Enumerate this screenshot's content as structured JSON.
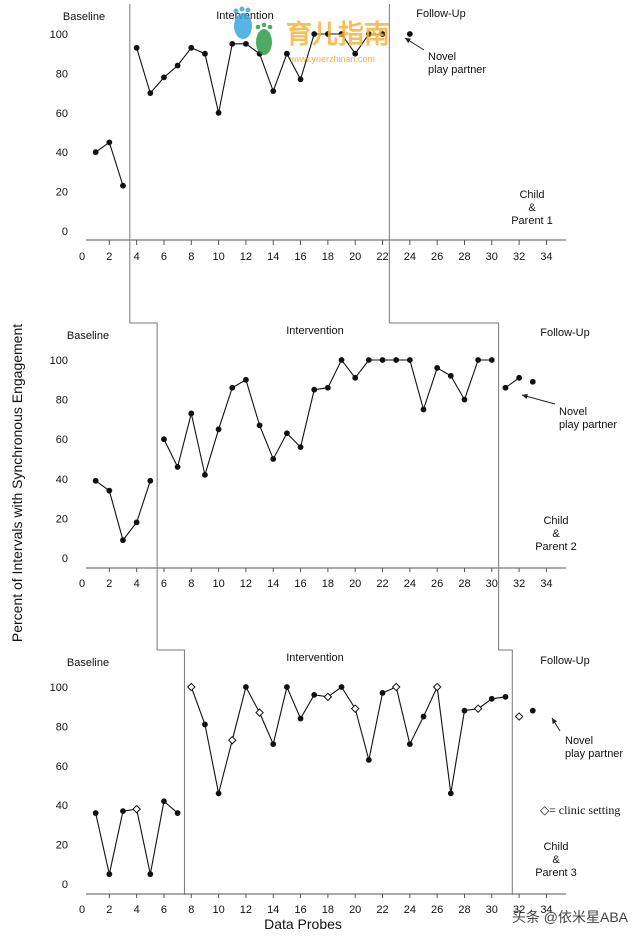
{
  "chart_data": [
    {
      "type": "line",
      "title": "Child & Parent 1",
      "participant": [
        "Child",
        "&",
        "Parent 1"
      ],
      "phases": [
        "Baseline",
        "Intervention",
        "Follow-Up"
      ],
      "xlim": [
        0,
        35
      ],
      "ylim": [
        0,
        100
      ],
      "xticks": [
        0,
        2,
        4,
        6,
        8,
        10,
        12,
        14,
        16,
        18,
        20,
        22,
        24,
        26,
        28,
        30,
        32,
        34
      ],
      "yticks": [
        0,
        20,
        40,
        60,
        80,
        100
      ],
      "phase_changes": [
        3.5,
        22.5
      ],
      "series": [
        {
          "name": "Baseline",
          "x": [
            1,
            2,
            3
          ],
          "y": [
            40,
            45,
            23
          ]
        },
        {
          "name": "Intervention",
          "x": [
            4,
            5,
            6,
            7,
            8,
            9,
            10,
            11,
            12,
            13,
            14,
            15,
            16,
            17,
            18,
            19,
            20,
            21,
            22
          ],
          "y": [
            93,
            70,
            78,
            84,
            93,
            90,
            60,
            95,
            95,
            90,
            71,
            90,
            77,
            100,
            100,
            100,
            90,
            100,
            100
          ]
        },
        {
          "name": "Follow-Up",
          "x": [
            24
          ],
          "y": [
            100
          ]
        }
      ],
      "annotation": {
        "text": [
          "Novel",
          "play partner"
        ],
        "points_to": {
          "x": 24,
          "y": 100
        }
      }
    },
    {
      "type": "line",
      "title": "Child & Parent 2",
      "participant": [
        "Child",
        "&",
        "Parent 2"
      ],
      "phases": [
        "Baseline",
        "Intervention",
        "Follow-Up"
      ],
      "xlim": [
        0,
        35
      ],
      "ylim": [
        0,
        100
      ],
      "xticks": [
        0,
        2,
        4,
        6,
        8,
        10,
        12,
        14,
        16,
        18,
        20,
        22,
        24,
        26,
        28,
        30,
        32,
        34
      ],
      "yticks": [
        0,
        20,
        40,
        60,
        80,
        100
      ],
      "phase_changes": [
        5.5,
        30.5
      ],
      "series": [
        {
          "name": "Baseline",
          "x": [
            1,
            2,
            3,
            4,
            5
          ],
          "y": [
            39,
            34,
            9,
            18,
            39
          ]
        },
        {
          "name": "Intervention",
          "x": [
            6,
            7,
            8,
            9,
            10,
            11,
            12,
            13,
            14,
            15,
            16,
            17,
            18,
            19,
            20,
            21,
            22,
            23,
            24,
            25,
            26,
            27,
            28,
            29,
            30
          ],
          "y": [
            60,
            46,
            73,
            42,
            65,
            86,
            90,
            67,
            50,
            63,
            56,
            85,
            86,
            100,
            91,
            100,
            100,
            100,
            100,
            75,
            96,
            92,
            80,
            100,
            100
          ]
        },
        {
          "name": "Follow-Up",
          "x": [
            31,
            32
          ],
          "y": [
            86,
            91
          ]
        },
        {
          "name": "Follow-Up (novel partner)",
          "x": [
            33
          ],
          "y": [
            89
          ]
        }
      ],
      "annotation": {
        "text": [
          "Novel",
          "play partner"
        ],
        "points_to": {
          "x": 32,
          "y": 83
        }
      }
    },
    {
      "type": "line",
      "title": "Child & Parent 3",
      "participant": [
        "Child",
        "&",
        "Parent 3"
      ],
      "phases": [
        "Baseline",
        "Intervention",
        "Follow-Up"
      ],
      "xlim": [
        0,
        35
      ],
      "ylim": [
        0,
        100
      ],
      "xticks": [
        0,
        2,
        4,
        6,
        8,
        10,
        12,
        14,
        16,
        18,
        20,
        22,
        24,
        26,
        28,
        30,
        32,
        34
      ],
      "yticks": [
        0,
        20,
        40,
        60,
        80,
        100
      ],
      "phase_changes": [
        7.5,
        31.5
      ],
      "series": [
        {
          "name": "Baseline",
          "x": [
            1,
            2,
            3,
            4,
            5,
            6,
            7
          ],
          "y": [
            36,
            5,
            37,
            38,
            5,
            42,
            36
          ],
          "clinic": [
            false,
            false,
            false,
            true,
            false,
            false,
            false
          ]
        },
        {
          "name": "Intervention",
          "x": [
            8,
            9,
            10,
            11,
            12,
            13,
            14,
            15,
            16,
            17,
            18,
            19,
            20,
            21,
            22,
            23,
            24,
            25,
            26,
            27,
            28,
            29,
            30,
            31
          ],
          "y": [
            100,
            81,
            46,
            73,
            100,
            87,
            71,
            100,
            84,
            96,
            95,
            100,
            89,
            63,
            97,
            100,
            71,
            85,
            100,
            46,
            88,
            89,
            94,
            95
          ],
          "clinic": [
            true,
            false,
            false,
            true,
            false,
            true,
            false,
            false,
            false,
            false,
            true,
            false,
            true,
            false,
            false,
            true,
            false,
            false,
            true,
            false,
            false,
            true,
            false,
            false
          ]
        },
        {
          "name": "Follow-Up",
          "x": [
            32,
            33
          ],
          "y": [
            85,
            88
          ],
          "clinic": [
            true,
            false
          ]
        }
      ],
      "annotation": {
        "text": [
          "Novel",
          "play partner"
        ],
        "points_to": {
          "x": 33,
          "y": 82
        }
      },
      "legend": {
        "symbol": "◇",
        "text": "= clinic setting",
        "placement": "right"
      }
    }
  ],
  "shared_axes": {
    "ylabel": "Percent of Intervals with Synchronous Engagement",
    "xlabel": "Data Probes"
  },
  "watermarks": {
    "logo_text": "育儿指南",
    "logo_url": "www.yuerzhinan.com",
    "credit": "头条 @依米星ABA"
  }
}
